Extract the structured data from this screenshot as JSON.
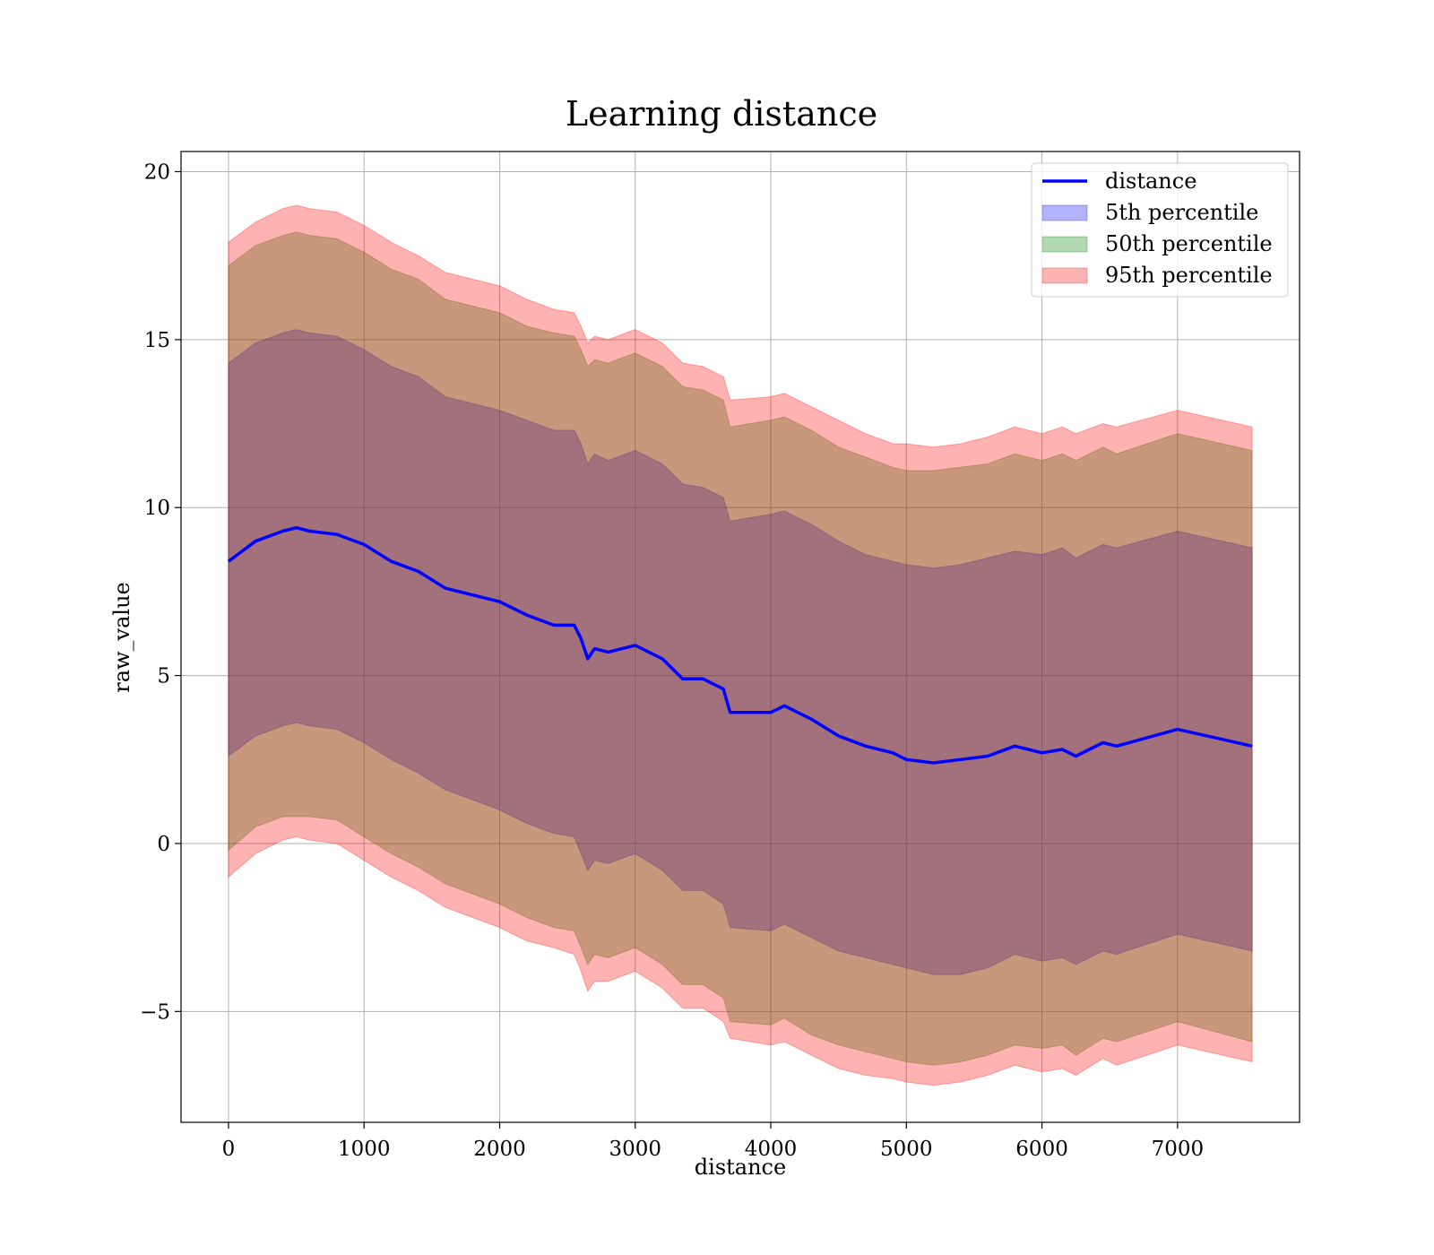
{
  "chart_data": {
    "type": "line",
    "title": "Learning distance",
    "xlabel": "distance",
    "ylabel": "raw_value",
    "xlim": [
      -350,
      7900
    ],
    "ylim": [
      -8.3,
      20.6
    ],
    "grid": true,
    "legend_position": "top-right",
    "x_ticks": [
      0,
      1000,
      2000,
      3000,
      4000,
      5000,
      6000,
      7000
    ],
    "y_ticks": [
      -5,
      0,
      5,
      10,
      15,
      20
    ],
    "y_tick_labels": [
      "−5",
      "0",
      "5",
      "10",
      "15",
      "20"
    ],
    "x": [
      0,
      200,
      400,
      500,
      600,
      800,
      1000,
      1200,
      1400,
      1600,
      1800,
      2000,
      2200,
      2400,
      2550,
      2600,
      2650,
      2700,
      2800,
      3000,
      3200,
      3350,
      3500,
      3650,
      3700,
      4000,
      4100,
      4300,
      4500,
      4700,
      4900,
      5000,
      5200,
      5400,
      5600,
      5800,
      6000,
      6150,
      6250,
      6450,
      6550,
      7000,
      7550
    ],
    "series": [
      {
        "name": "distance",
        "kind": "line",
        "color": "#0000ff",
        "values": [
          8.4,
          9.0,
          9.3,
          9.4,
          9.3,
          9.2,
          8.9,
          8.4,
          8.1,
          7.6,
          7.4,
          7.2,
          6.8,
          6.5,
          6.5,
          6.1,
          5.5,
          5.8,
          5.7,
          5.9,
          5.5,
          4.9,
          4.9,
          4.6,
          3.9,
          3.9,
          4.1,
          3.7,
          3.2,
          2.9,
          2.7,
          2.5,
          2.4,
          2.5,
          2.6,
          2.9,
          2.7,
          2.8,
          2.6,
          3.0,
          2.9,
          3.4,
          2.9
        ]
      },
      {
        "name": "5th percentile",
        "kind": "band",
        "color": "#0000ff",
        "lower": [
          2.6,
          3.2,
          3.5,
          3.6,
          3.5,
          3.4,
          3.0,
          2.5,
          2.1,
          1.6,
          1.3,
          1.0,
          0.6,
          0.3,
          0.2,
          -0.3,
          -0.8,
          -0.5,
          -0.6,
          -0.3,
          -0.8,
          -1.4,
          -1.4,
          -1.8,
          -2.5,
          -2.6,
          -2.4,
          -2.8,
          -3.2,
          -3.4,
          -3.6,
          -3.7,
          -3.9,
          -3.9,
          -3.7,
          -3.3,
          -3.5,
          -3.4,
          -3.6,
          -3.2,
          -3.3,
          -2.7,
          -3.2
        ],
        "upper": [
          14.3,
          14.9,
          15.2,
          15.3,
          15.2,
          15.1,
          14.7,
          14.2,
          13.9,
          13.3,
          13.1,
          12.9,
          12.6,
          12.3,
          12.3,
          11.9,
          11.3,
          11.6,
          11.4,
          11.7,
          11.3,
          10.7,
          10.6,
          10.3,
          9.6,
          9.8,
          9.9,
          9.5,
          9.0,
          8.6,
          8.4,
          8.3,
          8.2,
          8.3,
          8.5,
          8.7,
          8.6,
          8.8,
          8.5,
          8.9,
          8.8,
          9.3,
          8.8
        ]
      },
      {
        "name": "50th percentile",
        "kind": "band",
        "color": "#008000",
        "lower": [
          -0.2,
          0.5,
          0.8,
          0.8,
          0.8,
          0.7,
          0.2,
          -0.3,
          -0.7,
          -1.2,
          -1.5,
          -1.8,
          -2.2,
          -2.5,
          -2.6,
          -3.1,
          -3.6,
          -3.3,
          -3.4,
          -3.1,
          -3.6,
          -4.2,
          -4.2,
          -4.6,
          -5.3,
          -5.4,
          -5.2,
          -5.7,
          -6.0,
          -6.2,
          -6.4,
          -6.5,
          -6.6,
          -6.5,
          -6.3,
          -6.0,
          -6.1,
          -6.0,
          -6.3,
          -5.8,
          -5.9,
          -5.3,
          -5.9
        ],
        "upper": [
          17.2,
          17.8,
          18.1,
          18.2,
          18.1,
          18.0,
          17.6,
          17.1,
          16.8,
          16.2,
          16.0,
          15.8,
          15.4,
          15.2,
          15.1,
          14.7,
          14.2,
          14.4,
          14.3,
          14.6,
          14.2,
          13.6,
          13.5,
          13.2,
          12.4,
          12.6,
          12.7,
          12.3,
          11.8,
          11.5,
          11.2,
          11.1,
          11.1,
          11.2,
          11.3,
          11.6,
          11.4,
          11.6,
          11.4,
          11.8,
          11.6,
          12.2,
          11.7
        ]
      },
      {
        "name": "95th percentile",
        "kind": "band",
        "color": "#ff0000",
        "lower": [
          -1.0,
          -0.3,
          0.1,
          0.2,
          0.1,
          0.0,
          -0.5,
          -1.0,
          -1.4,
          -1.9,
          -2.2,
          -2.5,
          -2.9,
          -3.1,
          -3.3,
          -3.8,
          -4.4,
          -4.1,
          -4.1,
          -3.8,
          -4.3,
          -4.9,
          -4.9,
          -5.3,
          -5.8,
          -6.0,
          -5.9,
          -6.3,
          -6.7,
          -6.9,
          -7.0,
          -7.1,
          -7.2,
          -7.1,
          -6.9,
          -6.6,
          -6.8,
          -6.7,
          -6.9,
          -6.4,
          -6.6,
          -6.0,
          -6.5
        ],
        "upper": [
          17.9,
          18.5,
          18.9,
          19.0,
          18.9,
          18.8,
          18.4,
          17.9,
          17.5,
          17.0,
          16.8,
          16.6,
          16.2,
          15.9,
          15.8,
          15.4,
          14.9,
          15.1,
          15.0,
          15.3,
          14.9,
          14.3,
          14.2,
          13.9,
          13.2,
          13.3,
          13.4,
          13.0,
          12.6,
          12.2,
          11.9,
          11.9,
          11.8,
          11.9,
          12.1,
          12.4,
          12.2,
          12.4,
          12.2,
          12.5,
          12.4,
          12.9,
          12.4
        ]
      }
    ]
  }
}
